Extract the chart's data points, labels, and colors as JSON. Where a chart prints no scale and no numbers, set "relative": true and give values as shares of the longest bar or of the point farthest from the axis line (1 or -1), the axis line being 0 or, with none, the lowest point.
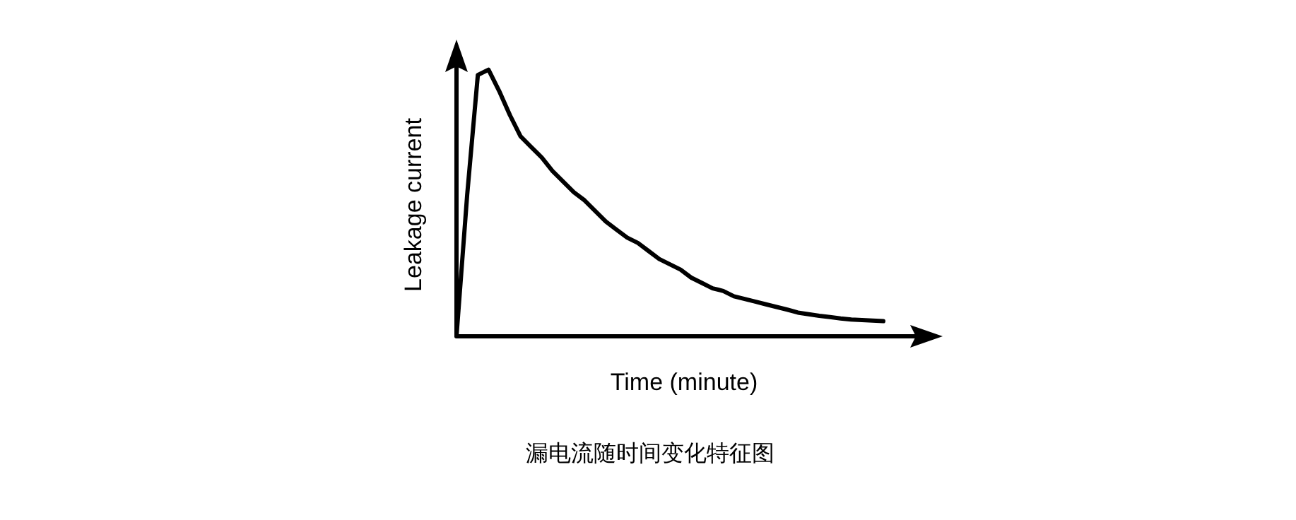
{
  "chart_data": {
    "type": "line",
    "relative": true,
    "xlabel": "Time (minute)",
    "ylabel": "Leakage current",
    "annotations": [
      "漏电流随时间变化特征图"
    ],
    "categories": [
      null,
      null,
      null,
      null,
      null,
      null,
      null,
      null,
      null,
      null,
      null,
      null,
      null,
      null,
      null,
      null,
      null,
      null,
      null,
      null,
      null,
      null,
      null,
      null,
      null,
      null,
      null,
      null,
      null,
      null,
      null,
      null,
      null,
      null,
      null,
      null,
      null,
      null,
      null,
      null,
      null
    ],
    "series": [
      {
        "color": "#000000",
        "values": [
          0,
          0.53,
          0.98,
          1.0,
          0.92,
          0.83,
          0.75,
          0.71,
          0.67,
          0.62,
          0.58,
          0.54,
          0.51,
          0.47,
          0.43,
          0.4,
          0.37,
          0.35,
          0.32,
          0.29,
          0.27,
          0.25,
          0.22,
          0.2,
          0.18,
          0.17,
          0.15,
          0.14,
          0.13,
          0.12,
          0.11,
          0.1,
          0.089,
          0.083,
          0.077,
          0.072,
          0.067,
          0.063,
          0.061,
          0.059,
          0.057
        ]
      }
    ]
  }
}
